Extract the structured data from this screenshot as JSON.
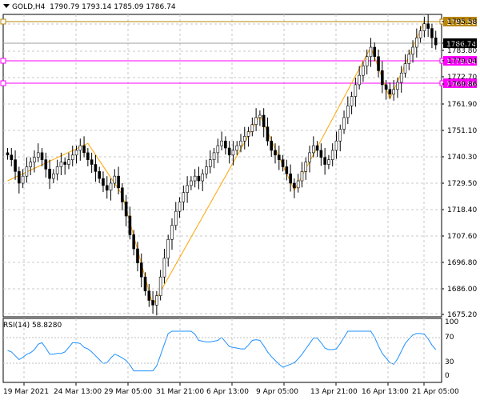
{
  "header": {
    "symbol": "GOLD,H4",
    "ohlc": "1790.79 1793.14 1785.09 1786.74"
  },
  "price_axis": {
    "ticks": [
      "1795.58",
      "1786.74",
      "1783.80",
      "1779.04",
      "1772.70",
      "1769.86",
      "1761.90",
      "1751.10",
      "1740.30",
      "1729.50",
      "1718.40",
      "1707.60",
      "1696.80",
      "1686.00",
      "1675.20"
    ]
  },
  "levels": [
    {
      "label": "1795.58",
      "color": "#b8860b"
    },
    {
      "label": "1786.74",
      "color": "#000000"
    },
    {
      "label": "1779.04",
      "color": "#ff00ff"
    },
    {
      "label": "1769.86",
      "color": "#ff00ff"
    }
  ],
  "rsi": {
    "title": "RSI(14) 58.8280",
    "ticks": [
      "100",
      "70",
      "30",
      "0"
    ],
    "color": "#1e90ff"
  },
  "time_axis": {
    "labels": [
      "19 Mar 2021",
      "24 Mar 13:00",
      "29 Mar 05:00",
      "31 Mar 21:00",
      "6 Apr 13:00",
      "9 Apr 05:00",
      "13 Apr 21:00",
      "16 Apr 13:00",
      "21 Apr 05:00"
    ]
  },
  "colors": {
    "candle": "#000000",
    "zigzag": "#ffa500",
    "grid": "#c8c8c8"
  },
  "chart_data": {
    "type": "candlestick",
    "xlabel": "",
    "ylabel": "",
    "ylim": [
      1671,
      1800
    ],
    "zigzag_points": [
      1729,
      1745,
      1723,
      1676,
      1757,
      1725,
      1786,
      1764,
      1797
    ],
    "closes": [
      1740,
      1738,
      1733,
      1728,
      1731,
      1735,
      1737,
      1739,
      1741,
      1738,
      1734,
      1730,
      1732,
      1735,
      1737,
      1736,
      1738,
      1740,
      1742,
      1744,
      1741,
      1738,
      1736,
      1733,
      1730,
      1727,
      1725,
      1728,
      1731,
      1726,
      1720,
      1714,
      1706,
      1700,
      1694,
      1688,
      1682,
      1678,
      1676,
      1680,
      1688,
      1696,
      1704,
      1710,
      1716,
      1720,
      1724,
      1727,
      1729,
      1731,
      1729,
      1732,
      1735,
      1738,
      1741,
      1744,
      1746,
      1743,
      1740,
      1742,
      1744,
      1746,
      1748,
      1750,
      1753,
      1756,
      1757,
      1752,
      1746,
      1742,
      1740,
      1738,
      1735,
      1732,
      1728,
      1726,
      1729,
      1733,
      1737,
      1741,
      1744,
      1742,
      1739,
      1736,
      1738,
      1742,
      1746,
      1751,
      1756,
      1761,
      1765,
      1770,
      1774,
      1778,
      1782,
      1786,
      1782,
      1776,
      1770,
      1768,
      1766,
      1768,
      1771,
      1775,
      1779,
      1783,
      1786,
      1790,
      1793,
      1796,
      1794,
      1790,
      1787
    ]
  }
}
